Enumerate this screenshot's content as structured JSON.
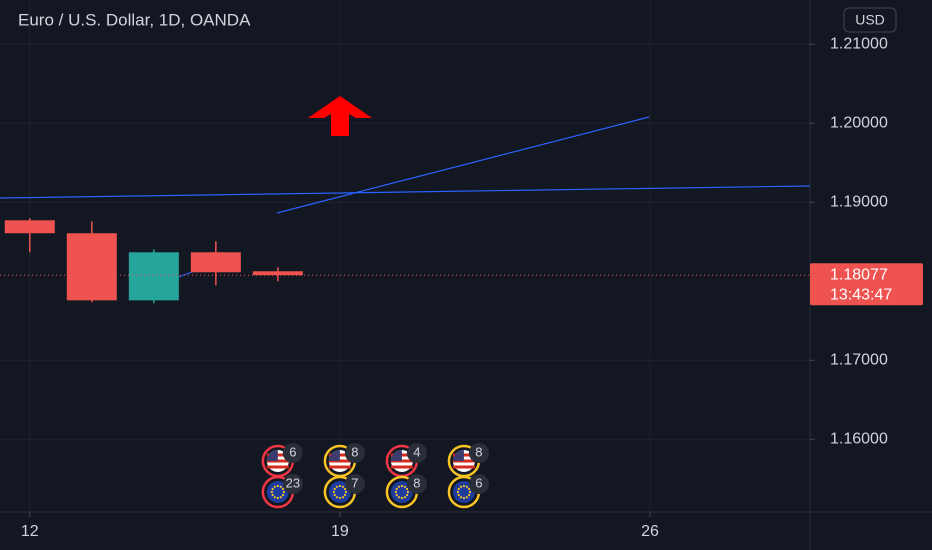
{
  "chart_data": {
    "type": "candlestick",
    "title": "Euro / U.S. Dollar, 1D, OANDA",
    "currency": "USD",
    "x": [
      0,
      1,
      2,
      3,
      4
    ],
    "open": [
      1.18772,
      1.18608,
      1.17759,
      1.18367,
      1.18127
    ],
    "high": [
      1.18797,
      1.18759,
      1.18405,
      1.18506,
      1.18177
    ],
    "low": [
      1.18367,
      1.17734,
      1.17722,
      1.17949,
      1.18
    ],
    "close": [
      1.18608,
      1.17759,
      1.18367,
      1.18114,
      1.18077
    ],
    "up_color": "#26a69a",
    "down_color": "#ef5350",
    "xlim": [
      -0.48,
      12.58
    ],
    "xticks": [
      {
        "value": 0,
        "label": "12"
      },
      {
        "value": 5,
        "label": "19"
      },
      {
        "value": 10,
        "label": "26"
      }
    ],
    "ylim": [
      1.1508,
      1.2156
    ],
    "yticks": [
      {
        "value": 1.16,
        "label": "1.16000"
      },
      {
        "value": 1.17,
        "label": "1.17000"
      },
      {
        "value": 1.19,
        "label": "1.19000"
      },
      {
        "value": 1.2,
        "label": "1.20000"
      },
      {
        "value": 1.21,
        "label": "1.21000"
      }
    ],
    "last_price": 1.18077,
    "last_price_label": "1.18077",
    "countdown": "13:43:47",
    "grid": true,
    "events": {
      "x": [
        4,
        5,
        6,
        7
      ],
      "us": [
        6,
        8,
        4,
        8
      ],
      "eu": [
        23,
        7,
        8,
        6
      ]
    }
  }
}
